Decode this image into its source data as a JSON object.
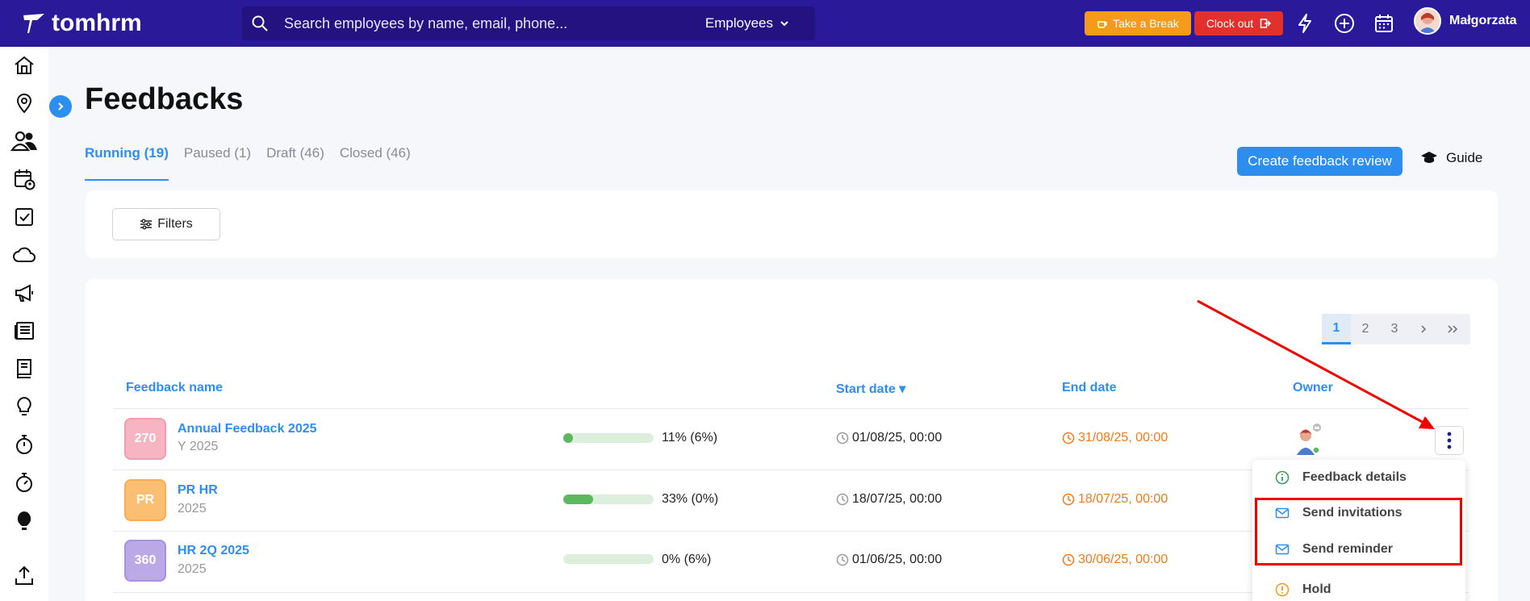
{
  "app": {
    "brand": "tomhrm"
  },
  "search": {
    "placeholder": "Search employees by name, email, phone...",
    "scope": "Employees"
  },
  "header": {
    "take_break": "Take a Break",
    "clock_out": "Clock out",
    "user_name": "Małgorzata"
  },
  "page": {
    "title": "Feedbacks"
  },
  "tabs": [
    {
      "label": "Running (19)",
      "active": true
    },
    {
      "label": "Paused (1)",
      "active": false
    },
    {
      "label": "Draft (46)",
      "active": false
    },
    {
      "label": "Closed (46)",
      "active": false
    }
  ],
  "actions": {
    "create": "Create feedback review",
    "guide": "Guide",
    "filters": "Filters"
  },
  "pagination": {
    "pages": [
      "1",
      "2",
      "3"
    ],
    "current": "1"
  },
  "table": {
    "columns": {
      "name": "Feedback name",
      "start": "Start date ▾",
      "end": "End date",
      "owner": "Owner"
    },
    "rows": [
      {
        "badge": "270",
        "badge_color": "#f7b5c4",
        "name": "Annual Feedback 2025",
        "sub": "Y 2025",
        "progress": 0.11,
        "progress_text": "11%  (6%)",
        "start": "01/08/25, 00:00",
        "end": "31/08/25, 00:00"
      },
      {
        "badge": "PR",
        "badge_color": "#fbbf74",
        "name": "PR HR",
        "sub": "2025",
        "progress": 0.33,
        "progress_text": "33%  (0%)",
        "start": "18/07/25, 00:00",
        "end": "18/07/25, 00:00"
      },
      {
        "badge": "360",
        "badge_color": "#bba8e6",
        "name": "HR 2Q 2025",
        "sub": "2025",
        "progress": 0.0,
        "progress_text": "0%  (6%)",
        "start": "01/06/25, 00:00",
        "end": "30/06/25, 00:00"
      }
    ]
  },
  "menu": {
    "details": "Feedback details",
    "invitations": "Send invitations",
    "reminder": "Send reminder",
    "hold": "Hold"
  },
  "colors": {
    "brand": "#2a1a9a",
    "accent": "#2e8ef0",
    "break": "#f59a1a",
    "clockout": "#e2302d",
    "end_date": "#f07a1a",
    "annotation": "#e00000"
  }
}
